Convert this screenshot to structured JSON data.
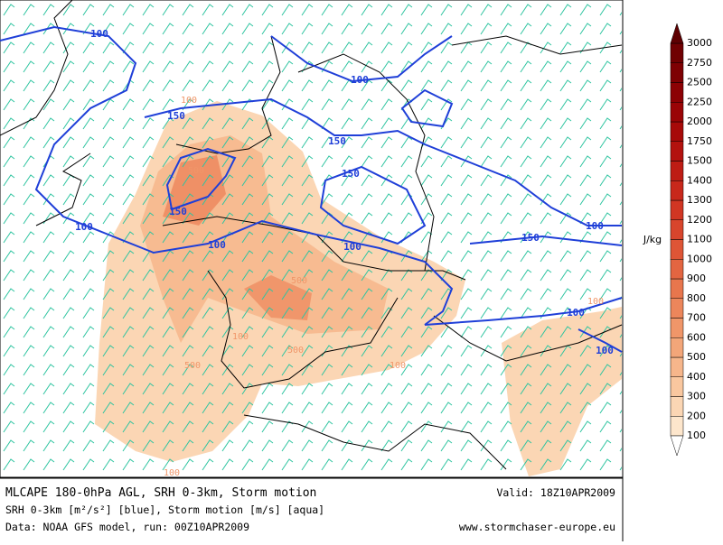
{
  "header": {
    "title": "MLCAPE 180-0hPa AGL, SRH 0-3km, Storm motion",
    "valid": "Valid: 18Z10APR2009",
    "subtitle": "SRH 0-3km [m²/s²] [blue], Storm motion [m/s] [aqua]",
    "source": "Data: NOAA GFS model, run: 00Z10APR2009",
    "website": "www.stormchaser-europe.eu"
  },
  "colorbar": {
    "unit": "J/kg",
    "levels": [
      100,
      200,
      300,
      400,
      500,
      600,
      700,
      800,
      900,
      1000,
      1100,
      1200,
      1300,
      1400,
      1500,
      1750,
      2000,
      2250,
      2500,
      2750,
      3000
    ],
    "colors": [
      "#fde6cc",
      "#fbd6b4",
      "#f9c79f",
      "#f6b68b",
      "#f3a679",
      "#f09669",
      "#ec865b",
      "#e8764d",
      "#e36541",
      "#de5536",
      "#d8452c",
      "#d13623",
      "#c8281b",
      "#be1c14",
      "#b3120e",
      "#a70a09",
      "#9a0406",
      "#8c0104",
      "#7e0003",
      "#700002"
    ],
    "top_color": "#5e0002"
  },
  "map": {
    "srh_labels": [
      "100",
      "150",
      "100",
      "150",
      "150",
      "100",
      "150",
      "100",
      "100",
      "150",
      "100",
      "100",
      "100"
    ],
    "cape_labels": [
      "100",
      "500",
      "500",
      "500",
      "500",
      "100",
      "100",
      "100",
      "100"
    ]
  }
}
